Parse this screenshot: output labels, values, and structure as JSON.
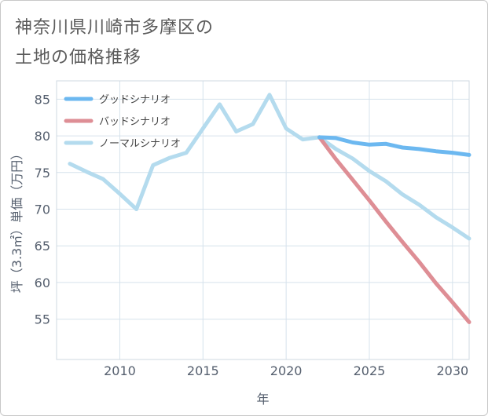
{
  "title_lines": [
    "神奈川県川崎市多摩区の",
    "土地の価格推移"
  ],
  "chart_data": {
    "type": "line",
    "xlabel": "年",
    "ylabel": "坪（3.3㎡）単価（万円）",
    "xlim": [
      2006.2,
      2031
    ],
    "ylim": [
      49.5,
      87.5
    ],
    "xticks": [
      2010,
      2015,
      2020,
      2025,
      2030
    ],
    "yticks": [
      55,
      60,
      65,
      70,
      75,
      80,
      85
    ],
    "grid": true,
    "legend_position": "top-left",
    "series": [
      {
        "name": "グッドシナリオ",
        "color": "#6cb8f0",
        "x": [
          2022,
          2023,
          2024,
          2025,
          2026,
          2027,
          2028,
          2029,
          2030,
          2031
        ],
        "y": [
          79.8,
          79.7,
          79.1,
          78.8,
          78.9,
          78.4,
          78.2,
          77.9,
          77.7,
          77.4
        ]
      },
      {
        "name": "バッドシナリオ",
        "color": "#de8e95",
        "x": [
          2022,
          2023,
          2024,
          2025,
          2026,
          2027,
          2028,
          2029,
          2030,
          2031
        ],
        "y": [
          79.8,
          76.8,
          74.0,
          71.2,
          68.3,
          65.5,
          62.8,
          59.9,
          57.3,
          54.6
        ]
      },
      {
        "name": "ノーマルシナリオ",
        "color": "#b4dbee",
        "x": [
          2007,
          2008,
          2009,
          2010,
          2011,
          2012,
          2013,
          2014,
          2015,
          2016,
          2017,
          2018,
          2019,
          2020,
          2021,
          2022,
          2023,
          2024,
          2025,
          2026,
          2027,
          2028,
          2029,
          2030,
          2031
        ],
        "y": [
          76.2,
          75.1,
          74.1,
          72.1,
          70.0,
          76.0,
          77.0,
          77.7,
          81.0,
          84.3,
          80.6,
          81.6,
          85.6,
          81.0,
          79.5,
          79.8,
          78.2,
          76.9,
          75.2,
          73.8,
          72.0,
          70.6,
          68.9,
          67.5,
          66.0
        ]
      }
    ]
  }
}
